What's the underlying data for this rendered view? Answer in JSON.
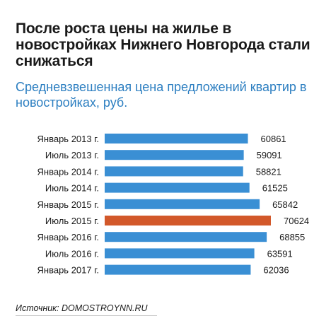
{
  "header": {
    "title": "После роста цены на жилье в новостройках Нижнего Новгорода стали снижаться",
    "subtitle": "Средневзвешенная цена предложений квартир в новостройках, руб."
  },
  "source": "Источник: DOMOSTROYNN.RU",
  "colors": {
    "bar": "#3a8fd4",
    "highlight": "#d2582a",
    "title": "#1a1a1a",
    "subtitle": "#2d7fc1"
  },
  "chart_data": {
    "type": "bar",
    "orientation": "horizontal",
    "categories": [
      "Январь 2013 г.",
      "Июль 2013 г.",
      "Январь 2014 г.",
      "Июль 2014 г.",
      "Январь 2015 г.",
      "Июль 2015 г.",
      "Январь 2016 г.",
      "Июль 2016 г.",
      "Январь 2017 г."
    ],
    "values": [
      60861,
      59091,
      58821,
      61525,
      65842,
      70624,
      68855,
      63591,
      62036
    ],
    "highlight_index": 5,
    "title": "После роста цены на жилье в новостройках Нижнего Новгорода стали снижаться",
    "subtitle": "Средневзвешенная цена предложений квартир в новостройках, руб.",
    "grid": false,
    "legend": "none"
  }
}
